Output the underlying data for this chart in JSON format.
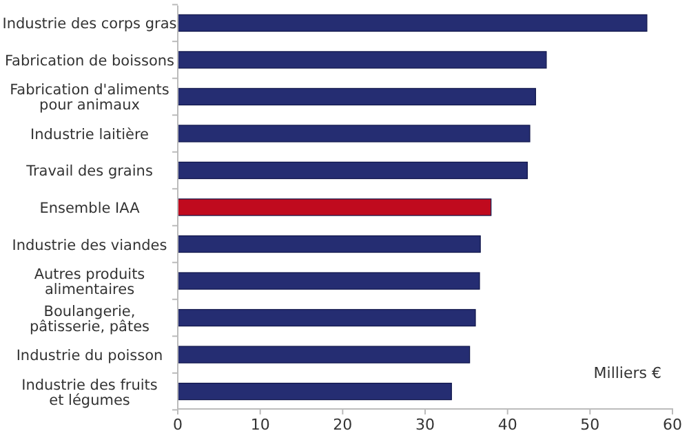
{
  "chart_data": {
    "type": "bar",
    "orientation": "horizontal",
    "categories": [
      "Industrie des corps gras",
      "Fabrication de boissons",
      "Fabrication d'aliments\npour animaux",
      "Industrie laitière",
      "Travail des grains",
      "Ensemble IAA",
      "Industrie des viandes",
      "Autres produits\nalimentaires",
      "Boulangerie,\npâtisserie, pâtes",
      "Industrie du poisson",
      "Industrie des fruits\net légumes"
    ],
    "values": [
      56.9,
      44.7,
      43.4,
      42.7,
      42.4,
      38.0,
      36.7,
      36.6,
      36.1,
      35.4,
      33.2
    ],
    "colors": [
      "#252d72",
      "#252d72",
      "#252d72",
      "#252d72",
      "#252d72",
      "#c00a1e",
      "#252d72",
      "#252d72",
      "#252d72",
      "#252d72",
      "#252d72"
    ],
    "xlim": [
      0,
      60
    ],
    "xticks": [
      0,
      10,
      20,
      30,
      40,
      50,
      60
    ],
    "annotations": [
      "Milliers €"
    ]
  }
}
